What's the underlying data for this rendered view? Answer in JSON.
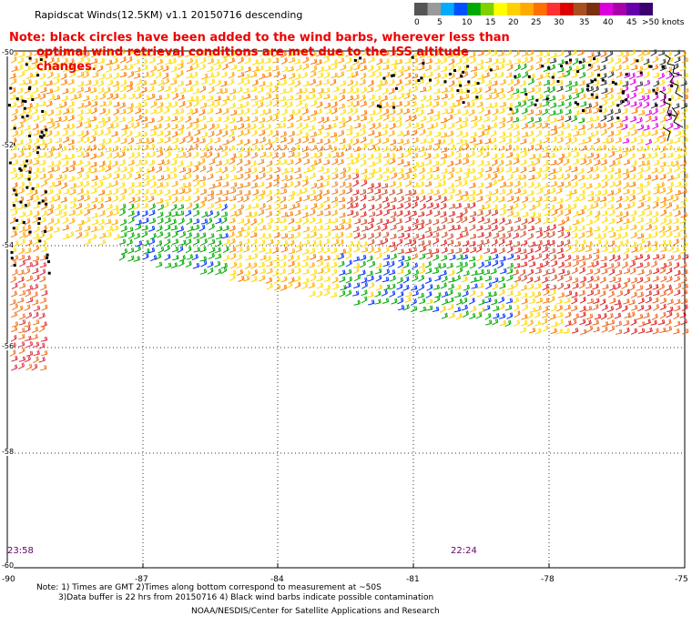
{
  "title": "Rapidscat Winds(12.5KM) v1.1 20150716 descending",
  "note": {
    "line1": "Note: black circles have been added to the wind barbs, wherever less than",
    "line2": "optimal wind retrieval conditions are met due to the ISS altitude changes."
  },
  "colorbar": {
    "labels": [
      "0",
      "5",
      "10",
      "15",
      "20",
      "25",
      "30",
      "35",
      "40",
      "45",
      ">50 knots"
    ],
    "colors": [
      "#555555",
      "#9a9a9a",
      "#00aaff",
      "#0050ff",
      "#00aa00",
      "#80d000",
      "#ffff00",
      "#ffd000",
      "#ffaa00",
      "#ff7000",
      "#ff3030",
      "#dd0000",
      "#aa5020",
      "#7a3010",
      "#dd00dd",
      "#aa00aa",
      "#6600aa",
      "#3a0070"
    ]
  },
  "lat_labels": [
    "-50",
    "-52",
    "-54",
    "-56",
    "-58",
    "-60"
  ],
  "lon_labels": [
    "-90",
    "-87",
    "-84",
    "-81",
    "-78",
    "-75"
  ],
  "time_labels": [
    "23:58",
    "22:24"
  ],
  "footnote": {
    "line1": "Note: 1) Times are GMT 2)Times along bottom correspond to measurement at ~50S",
    "line2": "3)Data buffer is 22 hrs from 20150716 4) Black wind barbs indicate possible contamination"
  },
  "credit": "NOAA/NESDIS/Center for Satellite Applications and Research",
  "map": {
    "lat_range": [
      -60,
      -50
    ],
    "lon_range": [
      -90,
      -75
    ],
    "grid_lines": "dotted",
    "wind_speed_units": "knots",
    "dominant_speeds_knots": [
      20,
      25,
      30,
      35
    ]
  }
}
